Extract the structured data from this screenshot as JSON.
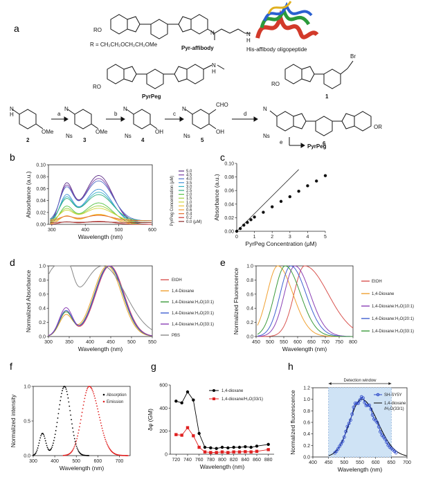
{
  "panel_labels": {
    "a": "a",
    "b": "b",
    "c": "c",
    "d": "d",
    "e": "e",
    "f": "f",
    "g": "g",
    "h": "h"
  },
  "scheme": {
    "r_group": "R = CH₂CH₂OCH₂CH₂OMe",
    "ro_labels": [
      "RO",
      "RO",
      "RO",
      "OR"
    ],
    "pyr_affibody": "Pyr-affibody",
    "his_affibody": "His-affibody oligopeptide",
    "pyrpeg": "PyrPeg",
    "compound_1": "1",
    "br": "Br",
    "n_label": "N",
    "nh_label": "H",
    "ome": "OMe",
    "oh": "OH",
    "ns": "Ns",
    "cho": "CHO",
    "compound_numbers": [
      "2",
      "3",
      "4",
      "5",
      "6"
    ],
    "steps": [
      "a",
      "b",
      "c",
      "d",
      "e"
    ],
    "final_product": "PyrPeg"
  },
  "chart_data": [
    {
      "id": "b",
      "type": "line",
      "xlabel": "Wavelength (nm)",
      "ylabel": "Absorbance (a.u.)",
      "xlim": [
        290,
        600
      ],
      "ylim": [
        0,
        0.1
      ],
      "xticks": [
        "300",
        "400",
        "500",
        "600"
      ],
      "yticks": [
        "0.00",
        "0.02",
        "0.04",
        "0.06",
        "0.08",
        "0.10"
      ],
      "legend_title": "PyrPeg Concentration (μM)",
      "legend_entries": [
        "5.0",
        "4.5",
        "4.0",
        "3.5",
        "3.0",
        "2.5",
        "2.0",
        "1.5",
        "1.0",
        "0.8",
        "0.6",
        "0.4",
        "0.2",
        "0.0 (μM)"
      ],
      "legend_colors": [
        "#5a2a86",
        "#7b3fa6",
        "#4f6ec9",
        "#3d8fd6",
        "#2fb2c4",
        "#2fae7c",
        "#56c243",
        "#9bd137",
        "#cfd638",
        "#f1c232",
        "#f39b2b",
        "#e36a2c",
        "#c9342f",
        "#8c2b2b"
      ],
      "series_peak_absorbance": [
        0.082,
        0.074,
        0.067,
        0.059,
        0.051,
        0.044,
        0.036,
        0.028,
        0.021,
        0.017,
        0.013,
        0.009,
        0.005,
        0.001
      ]
    },
    {
      "id": "c",
      "type": "scatter",
      "xlabel": "PyrPeg Concentration (μM)",
      "ylabel": "Absorbance (a.u.)",
      "xlim": [
        0,
        5
      ],
      "ylim": [
        0,
        0.1
      ],
      "xticks": [
        "0",
        "1",
        "2",
        "3",
        "4",
        "5"
      ],
      "yticks": [
        "0.00",
        "0.02",
        "0.04",
        "0.06",
        "0.08",
        "0.10"
      ],
      "points": [
        [
          0,
          0.0
        ],
        [
          0.2,
          0.004
        ],
        [
          0.4,
          0.009
        ],
        [
          0.6,
          0.013
        ],
        [
          0.8,
          0.017
        ],
        [
          1.0,
          0.021
        ],
        [
          1.5,
          0.028
        ],
        [
          2.0,
          0.036
        ],
        [
          2.5,
          0.044
        ],
        [
          3.0,
          0.051
        ],
        [
          3.5,
          0.059
        ],
        [
          4.0,
          0.067
        ],
        [
          4.5,
          0.074
        ],
        [
          5.0,
          0.082
        ]
      ],
      "line": [
        [
          0,
          0.0
        ],
        [
          3.5,
          0.091
        ]
      ]
    },
    {
      "id": "d",
      "type": "line",
      "xlabel": "Wavelength (nm)",
      "ylabel": "Normalized Absorbance",
      "xlim": [
        300,
        550
      ],
      "ylim": [
        0,
        1.0
      ],
      "xticks": [
        "300",
        "350",
        "400",
        "450",
        "500",
        "550"
      ],
      "yticks": [
        "0.0",
        "0.2",
        "0.4",
        "0.6",
        "0.8",
        "1.0"
      ],
      "series": [
        {
          "name": "EtOH",
          "color": "#d9534f",
          "peak": 448,
          "shoulder": 0.36
        },
        {
          "name": "1,4-Dioxane",
          "color": "#f0a030",
          "peak": 442,
          "shoulder": 0.3
        },
        {
          "name": "1,4-Dioxane:H₂O(10:1)",
          "color": "#3a9a3a",
          "peak": 445,
          "shoulder": 0.34
        },
        {
          "name": "1,4-Dioxane:H₂O(20:1)",
          "color": "#3f5fd0",
          "peak": 446,
          "shoulder": 0.36
        },
        {
          "name": "1,4-Dioxane:H₂O(33:1)",
          "color": "#8a3fb5",
          "peak": 447,
          "shoulder": 0.4
        },
        {
          "name": "PBS",
          "color": "#888888",
          "peak": 430,
          "shoulder": 0.8
        }
      ]
    },
    {
      "id": "e",
      "type": "line",
      "xlabel": "Wavelength (nm)",
      "ylabel": "Normalized Fluorescence",
      "xlim": [
        450,
        800
      ],
      "ylim": [
        0,
        1.0
      ],
      "xticks": [
        "450",
        "500",
        "550",
        "600",
        "650",
        "700",
        "750",
        "800"
      ],
      "yticks": [
        "0.0",
        "0.2",
        "0.4",
        "0.6",
        "0.8",
        "1.0"
      ],
      "series": [
        {
          "name": "EtOH",
          "color": "#d9534f",
          "peak": 625
        },
        {
          "name": "1,4-Dioxane",
          "color": "#f0a030",
          "peak": 528
        },
        {
          "name": "1,4-Dioxane:H₂O(10:1)",
          "color": "#8a3fb5",
          "peak": 590
        },
        {
          "name": "1,4-Dioxane:H₂O(20:1)",
          "color": "#3f5fd0",
          "peak": 575
        },
        {
          "name": "1,4-Dioxane:H₂O(33:1)",
          "color": "#3a9a3a",
          "peak": 555
        }
      ]
    },
    {
      "id": "f",
      "type": "line",
      "xlabel": "Wavelength (nm)",
      "ylabel": "Normalized intensity",
      "xlim": [
        300,
        750
      ],
      "ylim": [
        0,
        1.0
      ],
      "xticks": [
        "300",
        "400",
        "500",
        "600",
        "700"
      ],
      "yticks": [
        "0.0",
        "0.5",
        "1.0"
      ],
      "series": [
        {
          "name": "Absorption",
          "color": "#000000",
          "peak": 445
        },
        {
          "name": "Emission",
          "color": "#e02020",
          "peak": 560
        }
      ]
    },
    {
      "id": "g",
      "type": "line",
      "xlabel": "Wavelength (nm)",
      "ylabel": "δφ (GM)",
      "xlim": [
        710,
        890
      ],
      "ylim": [
        0,
        600
      ],
      "xticks": [
        "720",
        "740",
        "760",
        "780",
        "800",
        "820",
        "840",
        "860",
        "880"
      ],
      "yticks": [
        "0",
        "200",
        "400",
        "600"
      ],
      "x": [
        720,
        730,
        740,
        750,
        760,
        770,
        780,
        790,
        800,
        810,
        820,
        830,
        840,
        850,
        860,
        880
      ],
      "series": [
        {
          "name": "1,4-dioxane",
          "color": "#000000",
          "values": [
            460,
            445,
            540,
            470,
            180,
            60,
            55,
            50,
            60,
            55,
            60,
            60,
            65,
            60,
            70,
            85
          ]
        },
        {
          "name": "1,4-dioxane/H₂O(33/1)",
          "color": "#e02020",
          "values": [
            170,
            165,
            230,
            160,
            60,
            20,
            15,
            15,
            20,
            15,
            20,
            20,
            22,
            20,
            25,
            40
          ]
        }
      ]
    },
    {
      "id": "h",
      "type": "line",
      "xlabel": "Wavelength (nm)",
      "ylabel": "Normalized fluorescence",
      "xlim": [
        400,
        700
      ],
      "ylim": [
        0,
        1.2
      ],
      "xticks": [
        "400",
        "450",
        "500",
        "550",
        "600",
        "650",
        "700"
      ],
      "yticks": [
        "0.0",
        "0.2",
        "0.4",
        "0.6",
        "0.8",
        "1.0",
        "1.2"
      ],
      "window": [
        450,
        650
      ],
      "window_label": "Detection window",
      "series": [
        {
          "name": "SH-SY5Y",
          "color": "#2a46c8"
        },
        {
          "name": "1,4-dioxane /H₂O(33/1)",
          "color": "#000000"
        }
      ]
    }
  ]
}
